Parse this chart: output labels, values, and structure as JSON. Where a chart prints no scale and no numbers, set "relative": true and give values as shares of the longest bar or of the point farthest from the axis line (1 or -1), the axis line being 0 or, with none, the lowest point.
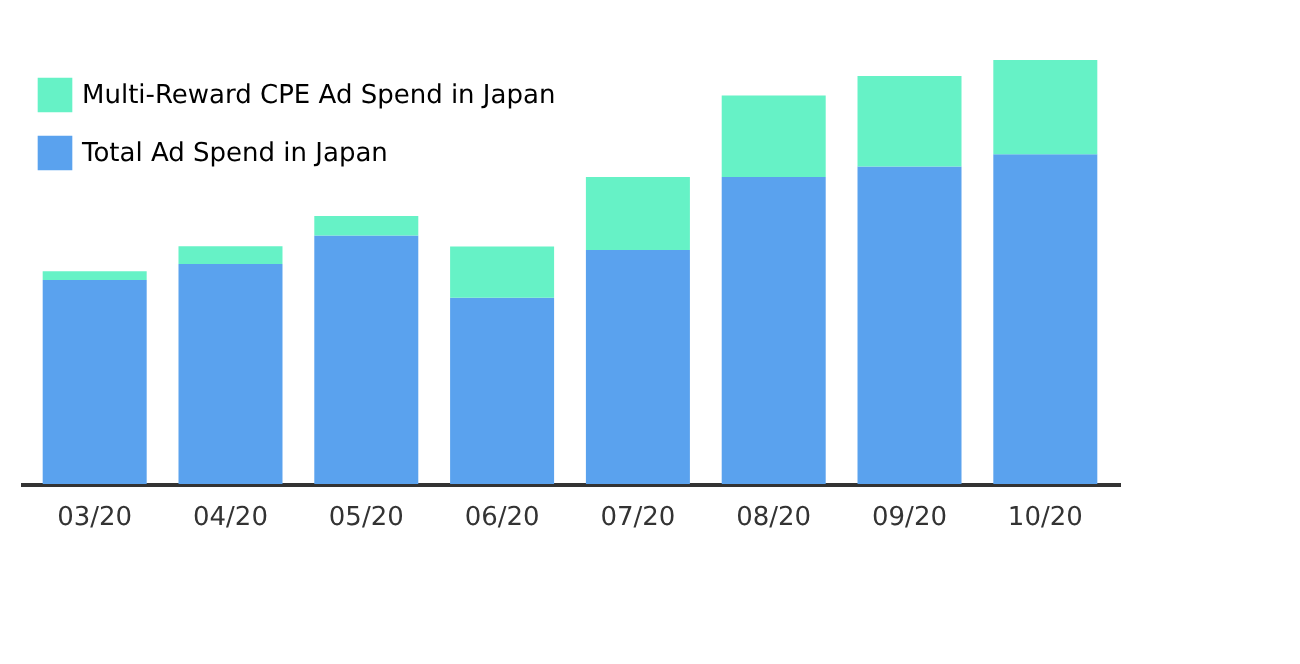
{
  "chart_data": {
    "type": "bar",
    "stacked": true,
    "relative": true,
    "legend": "top left",
    "grid": false,
    "categories": [
      "03/20",
      "04/20",
      "05/20",
      "06/20",
      "07/20",
      "08/20",
      "09/20",
      "10/20"
    ],
    "series": [
      {
        "name": "Total Ad Spend in Japan",
        "color": "#5aa2ee",
        "values": [
          0.481,
          0.519,
          0.586,
          0.439,
          0.552,
          0.724,
          0.749,
          0.778
        ]
      },
      {
        "name": "Multi-Reward CPE Ad Spend in Japan",
        "color": "#66f2c6",
        "values": [
          0.021,
          0.042,
          0.046,
          0.121,
          0.172,
          0.192,
          0.213,
          0.222
        ]
      }
    ]
  }
}
